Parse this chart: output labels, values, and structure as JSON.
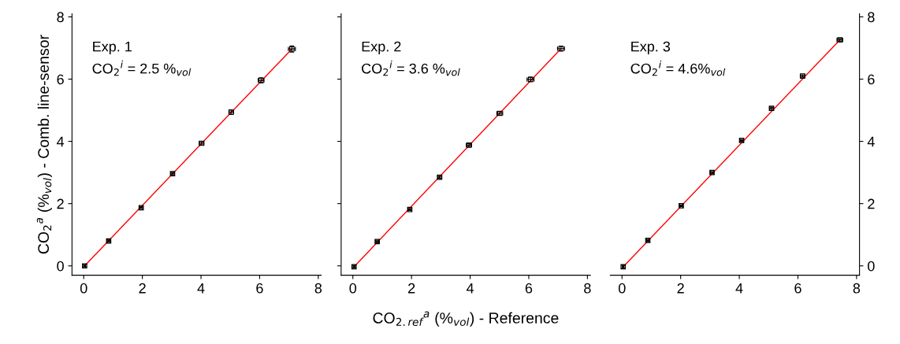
{
  "chart_data": [
    {
      "type": "scatter",
      "ylabel": "CO$_{2}$$^{a}$ (%$_{vol}$) - Comb. line-sensor",
      "annotations": [
        "Exp. 1",
        "CO$_{2}$$^{i}$ = 2.5 %$_{vol}$"
      ],
      "xlim": [
        -0.4,
        8.1
      ],
      "ylim": [
        -0.3,
        8.1
      ],
      "xticks": [
        0,
        2,
        4,
        6,
        8
      ],
      "yticks": [
        0,
        2,
        4,
        6,
        8
      ],
      "series": [
        {
          "color": "#000000",
          "marker": "square",
          "x": [
            0.03,
            0.85,
            1.96,
            3.03,
            4.02,
            5.03,
            6.05,
            7.1
          ],
          "values": [
            0.0,
            0.8,
            1.87,
            2.96,
            3.94,
            4.94,
            5.96,
            6.97
          ],
          "xerrors": [
            0.03,
            0.05,
            0.05,
            0.06,
            0.08,
            0.08,
            0.1,
            0.12
          ],
          "errors": [
            0.03,
            0.03,
            0.03,
            0.04,
            0.05,
            0.07,
            0.08,
            0.1
          ]
        },
        {
          "type": "line",
          "color": "#ff0000",
          "x": [
            0.03,
            7.1
          ],
          "values": [
            0.0,
            6.97
          ]
        }
      ]
    },
    {
      "type": "scatter",
      "xlabel": "CO$_{2.ref}$$^{a}$ (%$_{vol}$) - Reference",
      "annotations": [
        "Exp. 2",
        "CO$_{2}$$^{i}$ = 3.6 %$_{vol}$"
      ],
      "tick_labels": "x",
      "xlim": [
        -0.4,
        8.1
      ],
      "ylim": [
        -0.3,
        8.1
      ],
      "xticks": [
        0,
        2,
        4,
        6,
        8
      ],
      "yticks": [
        0,
        2,
        4,
        6,
        8
      ],
      "series": [
        {
          "color": "#000000",
          "marker": "square",
          "x": [
            0.04,
            0.83,
            1.94,
            2.96,
            3.96,
            5.01,
            6.06,
            7.1
          ],
          "values": [
            -0.03,
            0.78,
            1.81,
            2.85,
            3.88,
            4.9,
            5.99,
            6.98
          ],
          "xerrors": [
            0.03,
            0.05,
            0.06,
            0.07,
            0.09,
            0.1,
            0.12,
            0.12
          ],
          "errors": [
            0.03,
            0.03,
            0.03,
            0.04,
            0.05,
            0.06,
            0.07,
            0.08
          ]
        },
        {
          "type": "line",
          "color": "#ff0000",
          "x": [
            0.04,
            7.1
          ],
          "values": [
            -0.03,
            6.98
          ]
        }
      ]
    },
    {
      "type": "scatter",
      "annotations": [
        "Exp. 3",
        "CO$_{2}$$^{i}$ = 4.6%$_{vol}$"
      ],
      "xlim": [
        -0.4,
        8.1
      ],
      "ylim": [
        -0.3,
        8.1
      ],
      "xticks": [
        0,
        2,
        4,
        6,
        8
      ],
      "yticks": [
        0,
        2,
        4,
        6,
        8
      ],
      "series": [
        {
          "color": "#000000",
          "marker": "square",
          "x": [
            0.04,
            0.88,
            2.02,
            3.07,
            4.08,
            5.1,
            6.16,
            7.43
          ],
          "values": [
            -0.03,
            0.82,
            1.93,
            3.0,
            4.03,
            5.06,
            6.1,
            7.26
          ],
          "xerrors": [
            0.03,
            0.04,
            0.05,
            0.05,
            0.06,
            0.07,
            0.08,
            0.1
          ],
          "errors": [
            0.05,
            0.03,
            0.03,
            0.03,
            0.03,
            0.04,
            0.04,
            0.04
          ]
        },
        {
          "type": "line",
          "color": "#ff0000",
          "x": [
            0.04,
            7.43
          ],
          "values": [
            -0.03,
            7.26
          ]
        }
      ]
    }
  ]
}
